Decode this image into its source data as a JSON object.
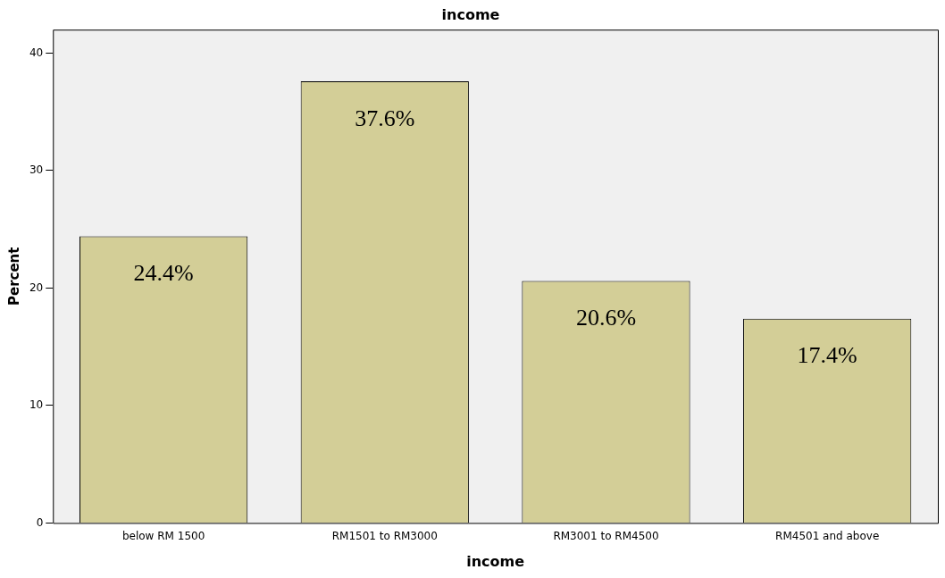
{
  "chart_data": {
    "type": "bar",
    "title": "income",
    "xlabel": "income",
    "ylabel": "Percent",
    "categories": [
      "below RM 1500",
      "RM1501 to RM3000",
      "RM3001 to RM4500",
      "RM4501 and above"
    ],
    "values": [
      24.4,
      37.6,
      20.6,
      17.4
    ],
    "value_labels": [
      "24.4%",
      "37.6%",
      "20.6%",
      "17.4%"
    ],
    "color": "#d3ce97",
    "ylim": [
      0,
      42
    ],
    "yticks": [
      0,
      10,
      20,
      30,
      40
    ],
    "grid": false,
    "legend": false
  }
}
